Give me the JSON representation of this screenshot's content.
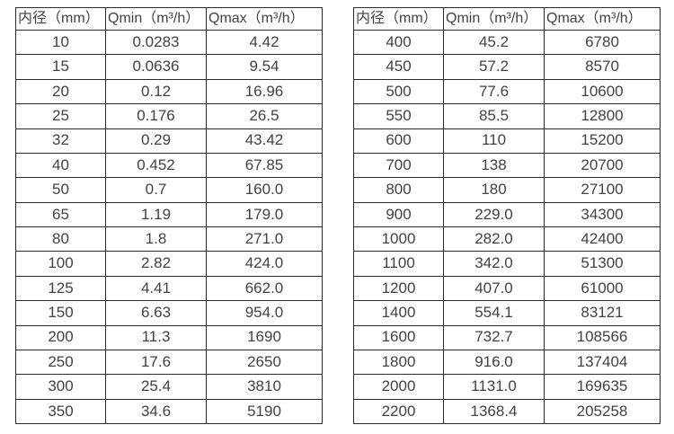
{
  "page": {
    "background_color": "#ffffff",
    "text_color": "#424242",
    "border_color": "#2d2d2d"
  },
  "tables": [
    {
      "name": "flow-capacity-small-diameters",
      "headers": [
        "内径（mm）",
        "Qmin（m³/h）",
        "Qmax（m³/h）"
      ],
      "rows": [
        [
          "10",
          "0.0283",
          "4.42"
        ],
        [
          "15",
          "0.0636",
          "9.54"
        ],
        [
          "20",
          "0.12",
          "16.96"
        ],
        [
          "25",
          "0.176",
          "26.5"
        ],
        [
          "32",
          "0.29",
          "43.42"
        ],
        [
          "40",
          "0.452",
          "67.85"
        ],
        [
          "50",
          "0.7",
          "160.0"
        ],
        [
          "65",
          "1.19",
          "179.0"
        ],
        [
          "80",
          "1.8",
          "271.0"
        ],
        [
          "100",
          "2.82",
          "424.0"
        ],
        [
          "125",
          "4.41",
          "662.0"
        ],
        [
          "150",
          "6.63",
          "954.0"
        ],
        [
          "200",
          "11.3",
          "1690"
        ],
        [
          "250",
          "17.6",
          "2650"
        ],
        [
          "300",
          "25.4",
          "3810"
        ],
        [
          "350",
          "34.6",
          "5190"
        ]
      ]
    },
    {
      "name": "flow-capacity-large-diameters",
      "headers": [
        "内径（mm）",
        "Qmin（m³/h）",
        "Qmax（m³/h）"
      ],
      "rows": [
        [
          "400",
          "45.2",
          "6780"
        ],
        [
          "450",
          "57.2",
          "8570"
        ],
        [
          "500",
          "77.6",
          "10600"
        ],
        [
          "550",
          "85.5",
          "12800"
        ],
        [
          "600",
          "110",
          "15200"
        ],
        [
          "700",
          "138",
          "20700"
        ],
        [
          "800",
          "180",
          "27100"
        ],
        [
          "900",
          "229.0",
          "34300"
        ],
        [
          "1000",
          "282.0",
          "42400"
        ],
        [
          "1100",
          "342.0",
          "51300"
        ],
        [
          "1200",
          "407.0",
          "61000"
        ],
        [
          "1400",
          "554.1",
          "83121"
        ],
        [
          "1600",
          "732.7",
          "108566"
        ],
        [
          "1800",
          "916.0",
          "137404"
        ],
        [
          "2000",
          "1131.0",
          "169635"
        ],
        [
          "2200",
          "1368.4",
          "205258"
        ]
      ]
    }
  ]
}
